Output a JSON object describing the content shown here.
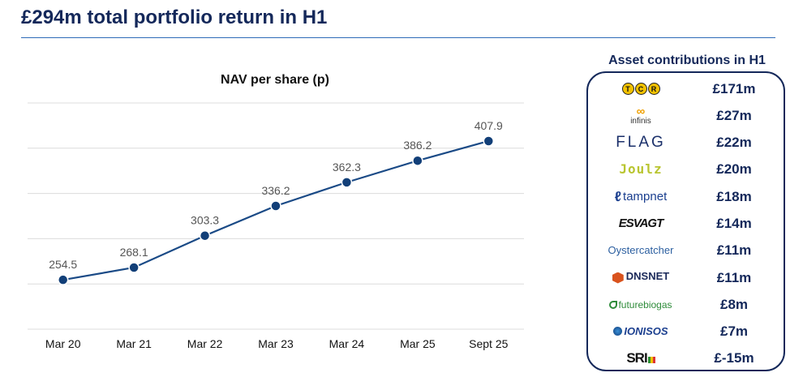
{
  "header": {
    "title": "£294m total portfolio return in H1"
  },
  "chart_data": {
    "type": "line",
    "title": "NAV per share (p)",
    "categories": [
      "Mar 20",
      "Mar 21",
      "Mar 22",
      "Mar 23",
      "Mar 24",
      "Mar 25",
      "Sept 25"
    ],
    "values": [
      254.5,
      268.1,
      303.3,
      336.2,
      362.3,
      386.2,
      407.9
    ],
    "data_labels": [
      "254.5",
      "268.1",
      "303.3",
      "336.2",
      "362.3",
      "386.2",
      "407.9"
    ],
    "xlabel": "",
    "ylabel": "",
    "ylim": [
      200,
      450
    ],
    "grid": true,
    "y_axis_labels_shown": false,
    "colors": {
      "line": "#1a4a86",
      "marker": "#123f78",
      "grid": "#dcdcdc"
    }
  },
  "contributions": {
    "title": "Asset contributions in H1",
    "items": [
      {
        "logo": "tcr-logo",
        "logo_text": "TCR",
        "value": "£171m"
      },
      {
        "logo": "infinis-logo",
        "logo_text": "infinis",
        "value": "£27m"
      },
      {
        "logo": "flag-logo",
        "logo_text": "FLAG",
        "value": "£22m"
      },
      {
        "logo": "joulz-logo",
        "logo_text": "Joulz",
        "value": "£20m"
      },
      {
        "logo": "tampnet-logo",
        "logo_text": "tampnet",
        "value": "£18m"
      },
      {
        "logo": "esvagt-logo",
        "logo_text": "ESVAGT",
        "value": "£14m"
      },
      {
        "logo": "oystercatcher-logo",
        "logo_text": "Oystercatcher",
        "value": "£11m"
      },
      {
        "logo": "dnsnet-logo",
        "logo_text": "DNSNET",
        "value": "£11m"
      },
      {
        "logo": "futurebiogas-logo",
        "logo_text": "futurebiogas",
        "value": "£8m"
      },
      {
        "logo": "ionisos-logo",
        "logo_text": "IONISOS",
        "value": "£7m"
      },
      {
        "logo": "sri-logo",
        "logo_text": "SRI",
        "value": "£-15m"
      }
    ]
  },
  "colors": {
    "title": "#14285a",
    "rule": "#2e6bb7"
  }
}
